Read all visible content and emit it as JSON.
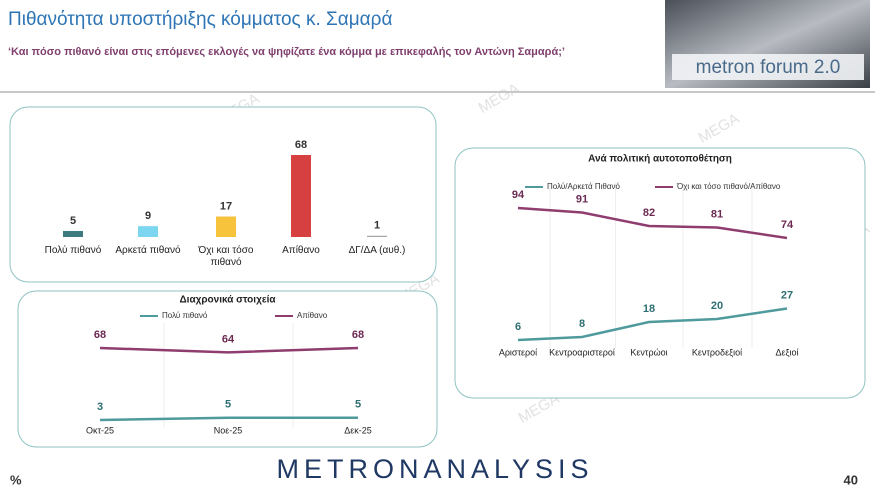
{
  "header": {
    "title": "Πιθανότητα υποστήριξης κόμματος κ. Σαμαρά",
    "subtitle": "‘Και πόσο πιθανό είναι στις επόμενες εκλογές να ψηφίζατε ένα κόμμα με επικεφαλής τον Αντώνη Σαμαρά;’",
    "logo": "metron forum 2.0"
  },
  "watermark": "MEGA",
  "chart_data": [
    {
      "type": "bar",
      "categories": [
        "Πολύ πιθανό",
        "Αρκετά πιθανό",
        "Όχι και τόσο πιθανό",
        "Απίθανο",
        "ΔΓ/ΔΑ (αυθ.)"
      ],
      "values": [
        5,
        9,
        17,
        68,
        1
      ],
      "colors": [
        "#3d7a80",
        "#7dd6f0",
        "#f7c23c",
        "#d64040",
        "#a6a6a6"
      ]
    },
    {
      "type": "line",
      "title": "Διαχρονικά στοιχεία",
      "categories": [
        "Οκτ-25",
        "Νοε-25",
        "Δεκ-25"
      ],
      "series": [
        {
          "name": "Πολύ πιθανό",
          "color": "#4f9a9c",
          "values": [
            3,
            5,
            5
          ]
        },
        {
          "name": "Απίθανο",
          "color": "#8e3d6e",
          "values": [
            68,
            64,
            68
          ]
        }
      ]
    },
    {
      "type": "line",
      "title": "Ανά πολιτική αυτοτοποθέτηση",
      "categories": [
        "Αριστεροί",
        "Κεντροαριστεροί",
        "Κεντρώοι",
        "Κεντροδεξιοί",
        "Δεξιοί"
      ],
      "series": [
        {
          "name": "Πολύ/Αρκετά Πιθανό",
          "color": "#4f9a9c",
          "values": [
            6,
            8,
            18,
            20,
            27
          ]
        },
        {
          "name": "Όχι και τόσο πιθανό/Απίθανο",
          "color": "#8e3d6e",
          "values": [
            94,
            91,
            82,
            81,
            74
          ]
        }
      ]
    }
  ],
  "footer": {
    "unit": "%",
    "brand": "METRONANALYSIS",
    "page": "40"
  }
}
